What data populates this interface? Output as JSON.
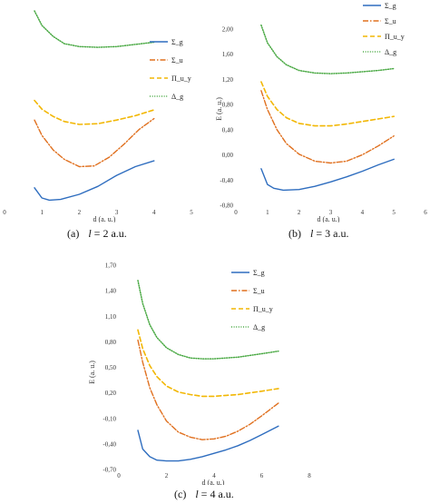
{
  "legend_labels": [
    "Σ_g",
    "Σ_u",
    "Π_u_y",
    "Δ_g"
  ],
  "colors": {
    "sigma_g": "#2e6dbf",
    "sigma_u": "#e0701f",
    "pi_u_y": "#f2b705",
    "delta_g": "#48a842"
  },
  "captions": [
    {
      "paren": "(a)",
      "l": "l",
      "rest": " = 2 a.u."
    },
    {
      "paren": "(b)",
      "l": "l",
      "rest": " = 3 a.u."
    },
    {
      "paren": "(c)",
      "l": "l",
      "rest": " = 4 a.u."
    }
  ],
  "chart_data": [
    {
      "type": "line",
      "caption": "(a) l = 2 a.u.",
      "xlabel": "d (a. u.)",
      "ylabel": "",
      "x_ticks": [
        "0",
        "1",
        "2",
        "3",
        "4",
        "5"
      ],
      "y_ticks": [],
      "xlim": [
        0,
        5
      ],
      "ylim": [
        -0.62,
        2.1
      ],
      "legend_position": "upper-right",
      "series": [
        {
          "name": "Σ_g",
          "x": [
            0.8,
            1.0,
            1.2,
            1.5,
            2.0,
            2.5,
            3.0,
            3.5,
            4.0
          ],
          "y": [
            -0.38,
            -0.52,
            -0.55,
            -0.54,
            -0.47,
            -0.36,
            -0.21,
            -0.09,
            -0.01
          ]
        },
        {
          "name": "Σ_u",
          "x": [
            0.8,
            1.0,
            1.3,
            1.6,
            2.0,
            2.4,
            2.8,
            3.2,
            3.6,
            4.0
          ],
          "y": [
            0.55,
            0.34,
            0.14,
            0.01,
            -0.09,
            -0.08,
            0.04,
            0.22,
            0.42,
            0.57
          ]
        },
        {
          "name": "Π_u_y",
          "x": [
            0.8,
            1.0,
            1.3,
            1.6,
            2.0,
            2.5,
            3.0,
            3.5,
            4.0
          ],
          "y": [
            0.82,
            0.7,
            0.6,
            0.53,
            0.49,
            0.5,
            0.55,
            0.61,
            0.69
          ]
        },
        {
          "name": "Δ_g",
          "x": [
            0.8,
            1.0,
            1.3,
            1.6,
            2.0,
            2.5,
            3.0,
            3.5,
            4.0
          ],
          "y": [
            2.05,
            1.85,
            1.7,
            1.6,
            1.56,
            1.55,
            1.56,
            1.59,
            1.62
          ]
        }
      ]
    },
    {
      "type": "line",
      "caption": "(b) l = 3 a.u.",
      "xlabel": "d (a. u.)",
      "ylabel": "E (a. u.)",
      "x_ticks": [
        "0",
        "1",
        "2",
        "3",
        "4",
        "5",
        "6"
      ],
      "y_ticks": [
        "-0,80",
        "-0,40",
        "0,00",
        "0,40",
        "0,80",
        "1,20",
        "1,60",
        "2,00"
      ],
      "xlim": [
        0,
        6
      ],
      "ylim": [
        -0.8,
        2.2
      ],
      "legend_position": "top-right",
      "series": [
        {
          "name": "Σ_g",
          "x": [
            0.8,
            1.0,
            1.2,
            1.5,
            2.0,
            2.5,
            3.0,
            3.5,
            4.0,
            4.5,
            5.0
          ],
          "y": [
            -0.22,
            -0.47,
            -0.53,
            -0.56,
            -0.55,
            -0.5,
            -0.43,
            -0.35,
            -0.26,
            -0.16,
            -0.07
          ]
        },
        {
          "name": "Σ_u",
          "x": [
            0.8,
            1.0,
            1.3,
            1.6,
            2.0,
            2.5,
            3.0,
            3.5,
            4.0,
            4.5,
            5.0
          ],
          "y": [
            1.02,
            0.72,
            0.4,
            0.18,
            0.01,
            -0.1,
            -0.13,
            -0.1,
            0.0,
            0.14,
            0.3
          ]
        },
        {
          "name": "Π_u_y",
          "x": [
            0.8,
            1.0,
            1.3,
            1.6,
            2.0,
            2.5,
            3.0,
            3.5,
            4.0,
            4.5,
            5.0
          ],
          "y": [
            1.16,
            0.93,
            0.72,
            0.59,
            0.5,
            0.46,
            0.46,
            0.49,
            0.53,
            0.57,
            0.61
          ]
        },
        {
          "name": "Δ_g",
          "x": [
            0.8,
            1.0,
            1.3,
            1.6,
            2.0,
            2.5,
            3.0,
            3.5,
            4.0,
            4.5,
            5.0
          ],
          "y": [
            2.06,
            1.78,
            1.56,
            1.43,
            1.34,
            1.3,
            1.29,
            1.3,
            1.32,
            1.34,
            1.37
          ]
        }
      ]
    },
    {
      "type": "line",
      "caption": "(c) l = 4 a.u.",
      "xlabel": "d (a. u.)",
      "ylabel": "E (a. u.)",
      "x_ticks": [
        "0",
        "2",
        "4",
        "6",
        "8"
      ],
      "y_ticks": [
        "-0,70",
        "-0,40",
        "-0,10",
        "0,20",
        "0,50",
        "0,80",
        "1,10",
        "1,40",
        "1,70"
      ],
      "xlim": [
        0,
        8
      ],
      "ylim": [
        -0.7,
        1.7
      ],
      "legend_position": "top-right",
      "series": [
        {
          "name": "Σ_g",
          "x": [
            0.8,
            1.0,
            1.3,
            1.6,
            2.0,
            2.5,
            3.0,
            3.5,
            4.0,
            4.5,
            5.0,
            5.5,
            6.0,
            6.7
          ],
          "y": [
            -0.24,
            -0.46,
            -0.55,
            -0.59,
            -0.6,
            -0.6,
            -0.58,
            -0.55,
            -0.51,
            -0.47,
            -0.42,
            -0.36,
            -0.29,
            -0.19
          ]
        },
        {
          "name": "Σ_u",
          "x": [
            0.8,
            1.0,
            1.3,
            1.6,
            2.0,
            2.5,
            3.0,
            3.5,
            4.0,
            4.5,
            5.0,
            5.5,
            6.0,
            6.7
          ],
          "y": [
            0.82,
            0.56,
            0.26,
            0.06,
            -0.13,
            -0.26,
            -0.32,
            -0.35,
            -0.34,
            -0.31,
            -0.25,
            -0.17,
            -0.07,
            0.08
          ]
        },
        {
          "name": "Π_u_y",
          "x": [
            0.8,
            1.0,
            1.3,
            1.6,
            2.0,
            2.5,
            3.0,
            3.5,
            4.0,
            4.5,
            5.0,
            5.5,
            6.0,
            6.7
          ],
          "y": [
            0.94,
            0.72,
            0.52,
            0.39,
            0.28,
            0.21,
            0.18,
            0.16,
            0.16,
            0.17,
            0.18,
            0.2,
            0.22,
            0.25
          ]
        },
        {
          "name": "Δ_g",
          "x": [
            0.8,
            1.0,
            1.3,
            1.6,
            2.0,
            2.5,
            3.0,
            3.5,
            4.0,
            4.5,
            5.0,
            5.5,
            6.0,
            6.7
          ],
          "y": [
            1.52,
            1.25,
            1.0,
            0.85,
            0.73,
            0.65,
            0.61,
            0.6,
            0.6,
            0.61,
            0.62,
            0.64,
            0.66,
            0.69
          ]
        }
      ]
    }
  ]
}
